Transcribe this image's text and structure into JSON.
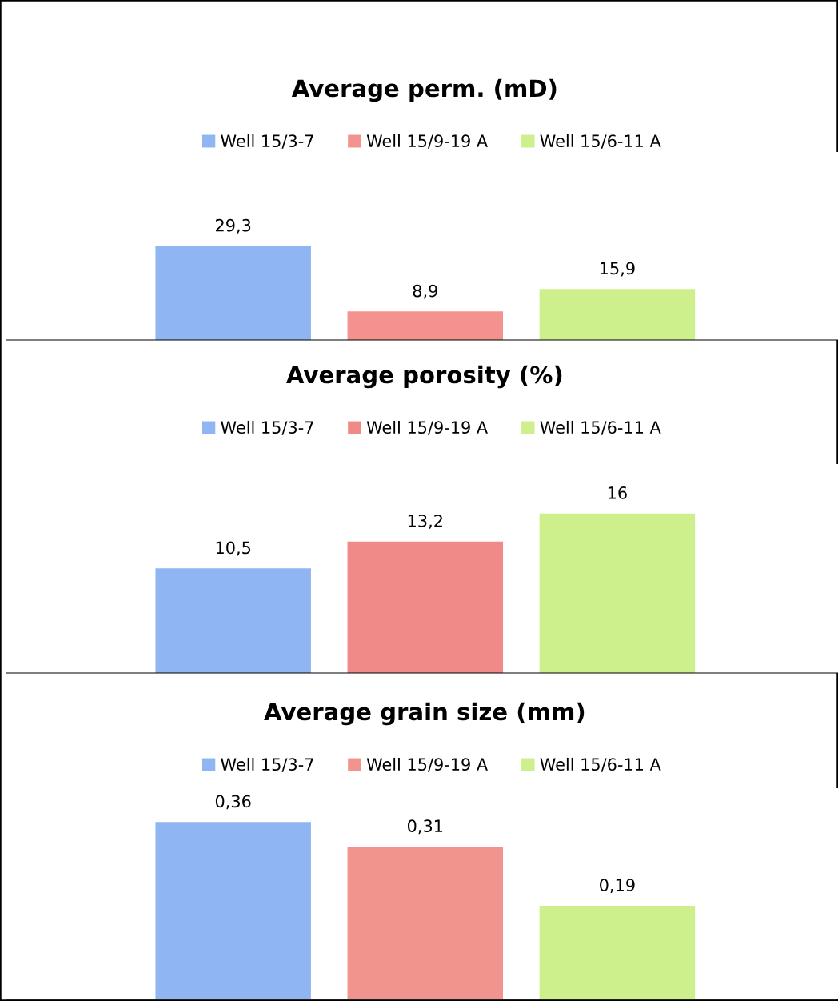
{
  "chart_data": [
    {
      "type": "bar",
      "title": "Average perm. (mD)",
      "categories": [
        null
      ],
      "data_labels": true,
      "legend": "top",
      "series": [
        {
          "name": "Well 15/3-7",
          "color": "#8fb6f2",
          "values": [
            29.3
          ],
          "value_labels": [
            "29,3"
          ]
        },
        {
          "name": "Well 15/9-19 A",
          "color": "#f49290",
          "values": [
            8.9
          ],
          "value_labels": [
            "8,9"
          ]
        },
        {
          "name": "Well 15/6-11 A",
          "color": "#cdf08c",
          "values": [
            15.9
          ],
          "value_labels": [
            "15,9"
          ]
        }
      ]
    },
    {
      "type": "bar",
      "title": "Average porosity (%)",
      "categories": [
        null
      ],
      "data_labels": true,
      "legend": "top",
      "series": [
        {
          "name": "Well 15/3-7",
          "color": "#8fb6f2",
          "values": [
            10.5
          ],
          "value_labels": [
            "10,5"
          ]
        },
        {
          "name": "Well 15/9-19 A",
          "color": "#f08a88",
          "values": [
            13.2
          ],
          "value_labels": [
            "13,2"
          ]
        },
        {
          "name": "Well 15/6-11 A",
          "color": "#cdf08c",
          "values": [
            16
          ],
          "value_labels": [
            "16"
          ]
        }
      ]
    },
    {
      "type": "bar",
      "title": "Average grain size (mm)",
      "categories": [
        null
      ],
      "data_labels": true,
      "legend": "top",
      "series": [
        {
          "name": "Well 15/3-7",
          "color": "#8fb6f2",
          "values": [
            0.36
          ],
          "value_labels": [
            "0,36"
          ]
        },
        {
          "name": "Well 15/9-19 A",
          "color": "#f2948e",
          "values": [
            0.31
          ],
          "value_labels": [
            "0,31"
          ]
        },
        {
          "name": "Well 15/6-11 A",
          "color": "#cdf08c",
          "values": [
            0.19
          ],
          "value_labels": [
            "0,19"
          ]
        }
      ]
    }
  ]
}
